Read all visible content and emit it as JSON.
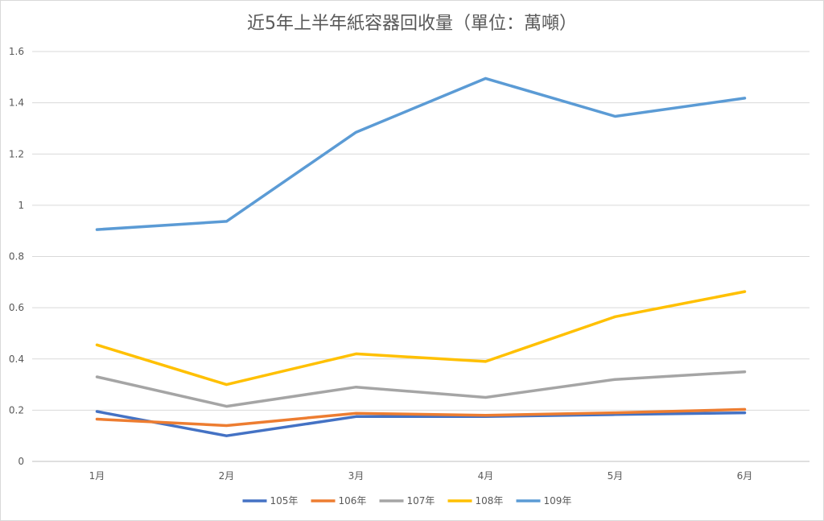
{
  "chart_data": {
    "type": "line",
    "title": "近5年上半年紙容器回收量（單位：萬噸）",
    "categories": [
      "1月",
      "2月",
      "3月",
      "4月",
      "5月",
      "6月"
    ],
    "ylim": [
      0,
      1.6
    ],
    "yticks": [
      "0",
      "0.2",
      "0.4",
      "0.6",
      "0.8",
      "1",
      "1.2",
      "1.4",
      "1.6"
    ],
    "grid": true,
    "legend_position": "bottom",
    "series": [
      {
        "name": "105年",
        "color": "#4472C4",
        "values": [
          0.195,
          0.1,
          0.175,
          0.175,
          0.183,
          0.19
        ]
      },
      {
        "name": "106年",
        "color": "#ED7D31",
        "values": [
          0.165,
          0.14,
          0.188,
          0.18,
          0.19,
          0.203
        ]
      },
      {
        "name": "107年",
        "color": "#A5A5A5",
        "values": [
          0.33,
          0.215,
          0.29,
          0.25,
          0.32,
          0.35
        ]
      },
      {
        "name": "108年",
        "color": "#FFC000",
        "values": [
          0.455,
          0.3,
          0.42,
          0.39,
          0.565,
          0.663
        ]
      },
      {
        "name": "109年",
        "color": "#5B9BD5",
        "values": [
          0.905,
          0.937,
          1.285,
          1.495,
          1.347,
          1.418
        ]
      }
    ]
  }
}
